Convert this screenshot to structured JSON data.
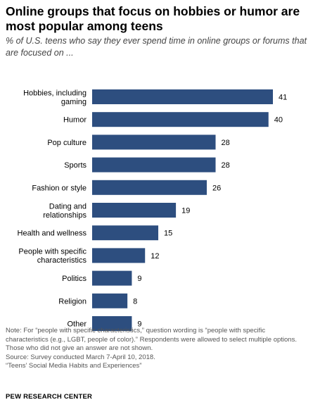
{
  "title": "Online groups that focus on hobbies or humor are most popular among teens",
  "subtitle": "% of U.S. teens who say they ever spend time in online groups or forums that are focused on ...",
  "chart_data": {
    "type": "bar",
    "orientation": "horizontal",
    "categories": [
      [
        "Hobbies, including",
        "gaming"
      ],
      [
        "Humor"
      ],
      [
        "Pop culture"
      ],
      [
        "Sports"
      ],
      [
        "Fashion or style"
      ],
      [
        "Dating and",
        "relationships"
      ],
      [
        "Health and wellness"
      ],
      [
        "People with specific",
        "characteristics"
      ],
      [
        "Politics"
      ],
      [
        "Religion"
      ],
      [
        "Other"
      ]
    ],
    "values": [
      41,
      40,
      28,
      28,
      26,
      19,
      15,
      12,
      9,
      8,
      9
    ],
    "xlim": [
      0,
      41
    ],
    "grid": false,
    "bar_color": "#2d4e7f"
  },
  "notes": {
    "note": "Note: For “people with specific characteristics,” question wording is “people with specific characteristics (e.g., LGBT, people of color).” Respondents were allowed to select multiple options. Those who did not give an answer are not shown.",
    "source": "Source: Survey conducted March 7-April 10, 2018.",
    "report": "“Teens’ Social Media Habits and Experiences”"
  },
  "branding": "PEW RESEARCH CENTER"
}
